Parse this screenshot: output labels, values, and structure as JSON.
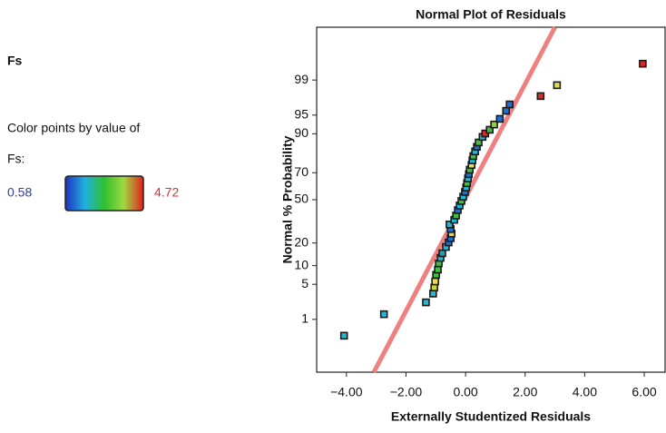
{
  "sidebar": {
    "title": "Fs",
    "caption": "Color points by value of",
    "variable": "Fs:",
    "min": 0.58,
    "max": 4.72,
    "gradient": [
      "#2030c0",
      "#20b0e0",
      "#30c030",
      "#a0d840",
      "#e02020"
    ]
  },
  "chart_data": {
    "type": "scatter",
    "title": "Normal Plot of Residuals",
    "xlabel": "Externally Studentized Residuals",
    "ylabel": "Normal % Probability",
    "x": [
      -4.08,
      -2.74,
      -1.33,
      -1.09,
      -1.05,
      -1.02,
      -0.99,
      -0.93,
      -0.9,
      -0.84,
      -0.78,
      -0.66,
      -0.57,
      -0.5,
      -0.47,
      -0.5,
      -0.54,
      -0.38,
      -0.32,
      -0.26,
      -0.2,
      -0.14,
      -0.08,
      -0.02,
      0.02,
      0.05,
      0.08,
      0.11,
      0.14,
      0.2,
      0.23,
      0.26,
      0.32,
      0.38,
      0.44,
      0.57,
      0.66,
      0.81,
      0.96,
      1.15,
      1.36,
      1.48,
      2.52,
      3.07,
      5.95
    ],
    "values": [
      0.41,
      1.3,
      2.3,
      3.4,
      4.4,
      5.6,
      7.2,
      8.7,
      10.8,
      12.9,
      14.9,
      17.9,
      20.3,
      22.7,
      25.5,
      28.4,
      31.5,
      34.8,
      37.9,
      42,
      45.5,
      49,
      52.4,
      56,
      59.4,
      62.6,
      66,
      69,
      72,
      75,
      77.8,
      80.2,
      82.6,
      84.8,
      86.7,
      88.9,
      90.1,
      91.3,
      92.8,
      94.2,
      95.8,
      96.8,
      97.8,
      98.7,
      99.59
    ],
    "point_colors": [
      "#22b8d8",
      "#22b8d8",
      "#22b8d8",
      "#22b8d8",
      "#c8d83a",
      "#e8e040",
      "#40c040",
      "#40c040",
      "#40c040",
      "#22b8d8",
      "#20a0b0",
      "#22b8d8",
      "#2070d0",
      "#2070d0",
      "#e0d840",
      "#2070d0",
      "#22b8d8",
      "#22b8d8",
      "#40c040",
      "#2070d0",
      "#22b8d8",
      "#40c040",
      "#22b8d8",
      "#2070d0",
      "#22b8d8",
      "#40c040",
      "#22b8d8",
      "#2070d0",
      "#40c040",
      "#e8e040",
      "#22b8d8",
      "#40c040",
      "#22b8d8",
      "#2070d0",
      "#40c040",
      "#22b8d8",
      "#e02828",
      "#40c040",
      "#90d040",
      "#2070d0",
      "#2070d0",
      "#2070d0",
      "#e02828",
      "#e0e040",
      "#e02828"
    ],
    "fit_line": {
      "x": [
        -3.08,
        3.0
      ],
      "y": [
        0.04,
        99.96
      ],
      "color": "#f08080"
    },
    "xlim": [
      -5.0,
      6.7
    ],
    "ylim": [
      0.04,
      99.96
    ],
    "yscale": "normal-probability",
    "xticks": [
      {
        "value": -4,
        "label": "−4.00"
      },
      {
        "value": -2,
        "label": "−2.00"
      },
      {
        "value": 0,
        "label": "0.00"
      },
      {
        "value": 2,
        "label": "2.00"
      },
      {
        "value": 4,
        "label": "4.00"
      },
      {
        "value": 6,
        "label": "6.00"
      }
    ],
    "yticks": [
      1,
      5,
      10,
      20,
      50,
      70,
      90,
      95,
      99
    ]
  }
}
